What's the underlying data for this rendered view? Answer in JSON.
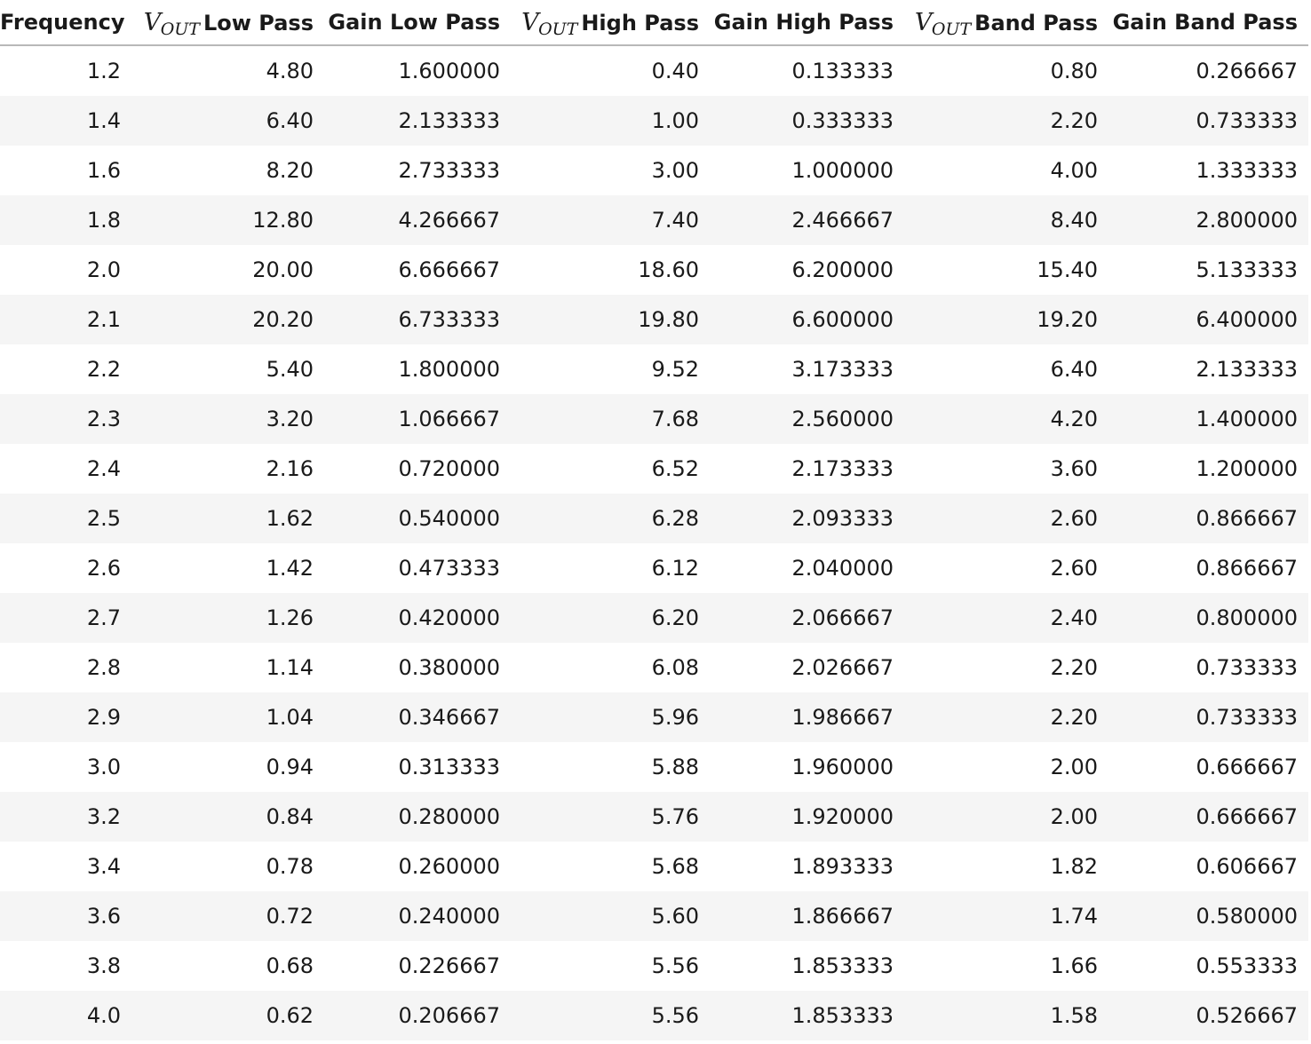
{
  "table": {
    "headers": [
      {
        "var": "",
        "sub": "",
        "label": "Frequency"
      },
      {
        "var": "V",
        "sub": "OUT",
        "label": "Low Pass"
      },
      {
        "var": "",
        "sub": "",
        "label": "Gain Low Pass"
      },
      {
        "var": "V",
        "sub": "OUT",
        "label": "High Pass"
      },
      {
        "var": "",
        "sub": "",
        "label": "Gain High Pass"
      },
      {
        "var": "V",
        "sub": "OUT",
        "label": "Band Pass"
      },
      {
        "var": "",
        "sub": "",
        "label": "Gain Band Pass"
      }
    ],
    "rows": [
      [
        "1.2",
        "4.80",
        "1.600000",
        "0.40",
        "0.133333",
        "0.80",
        "0.266667"
      ],
      [
        "1.4",
        "6.40",
        "2.133333",
        "1.00",
        "0.333333",
        "2.20",
        "0.733333"
      ],
      [
        "1.6",
        "8.20",
        "2.733333",
        "3.00",
        "1.000000",
        "4.00",
        "1.333333"
      ],
      [
        "1.8",
        "12.80",
        "4.266667",
        "7.40",
        "2.466667",
        "8.40",
        "2.800000"
      ],
      [
        "2.0",
        "20.00",
        "6.666667",
        "18.60",
        "6.200000",
        "15.40",
        "5.133333"
      ],
      [
        "2.1",
        "20.20",
        "6.733333",
        "19.80",
        "6.600000",
        "19.20",
        "6.400000"
      ],
      [
        "2.2",
        "5.40",
        "1.800000",
        "9.52",
        "3.173333",
        "6.40",
        "2.133333"
      ],
      [
        "2.3",
        "3.20",
        "1.066667",
        "7.68",
        "2.560000",
        "4.20",
        "1.400000"
      ],
      [
        "2.4",
        "2.16",
        "0.720000",
        "6.52",
        "2.173333",
        "3.60",
        "1.200000"
      ],
      [
        "2.5",
        "1.62",
        "0.540000",
        "6.28",
        "2.093333",
        "2.60",
        "0.866667"
      ],
      [
        "2.6",
        "1.42",
        "0.473333",
        "6.12",
        "2.040000",
        "2.60",
        "0.866667"
      ],
      [
        "2.7",
        "1.26",
        "0.420000",
        "6.20",
        "2.066667",
        "2.40",
        "0.800000"
      ],
      [
        "2.8",
        "1.14",
        "0.380000",
        "6.08",
        "2.026667",
        "2.20",
        "0.733333"
      ],
      [
        "2.9",
        "1.04",
        "0.346667",
        "5.96",
        "1.986667",
        "2.20",
        "0.733333"
      ],
      [
        "3.0",
        "0.94",
        "0.313333",
        "5.88",
        "1.960000",
        "2.00",
        "0.666667"
      ],
      [
        "3.2",
        "0.84",
        "0.280000",
        "5.76",
        "1.920000",
        "2.00",
        "0.666667"
      ],
      [
        "3.4",
        "0.78",
        "0.260000",
        "5.68",
        "1.893333",
        "1.82",
        "0.606667"
      ],
      [
        "3.6",
        "0.72",
        "0.240000",
        "5.60",
        "1.866667",
        "1.74",
        "0.580000"
      ],
      [
        "3.8",
        "0.68",
        "0.226667",
        "5.56",
        "1.853333",
        "1.66",
        "0.553333"
      ],
      [
        "4.0",
        "0.62",
        "0.206667",
        "5.56",
        "1.853333",
        "1.58",
        "0.526667"
      ]
    ]
  }
}
